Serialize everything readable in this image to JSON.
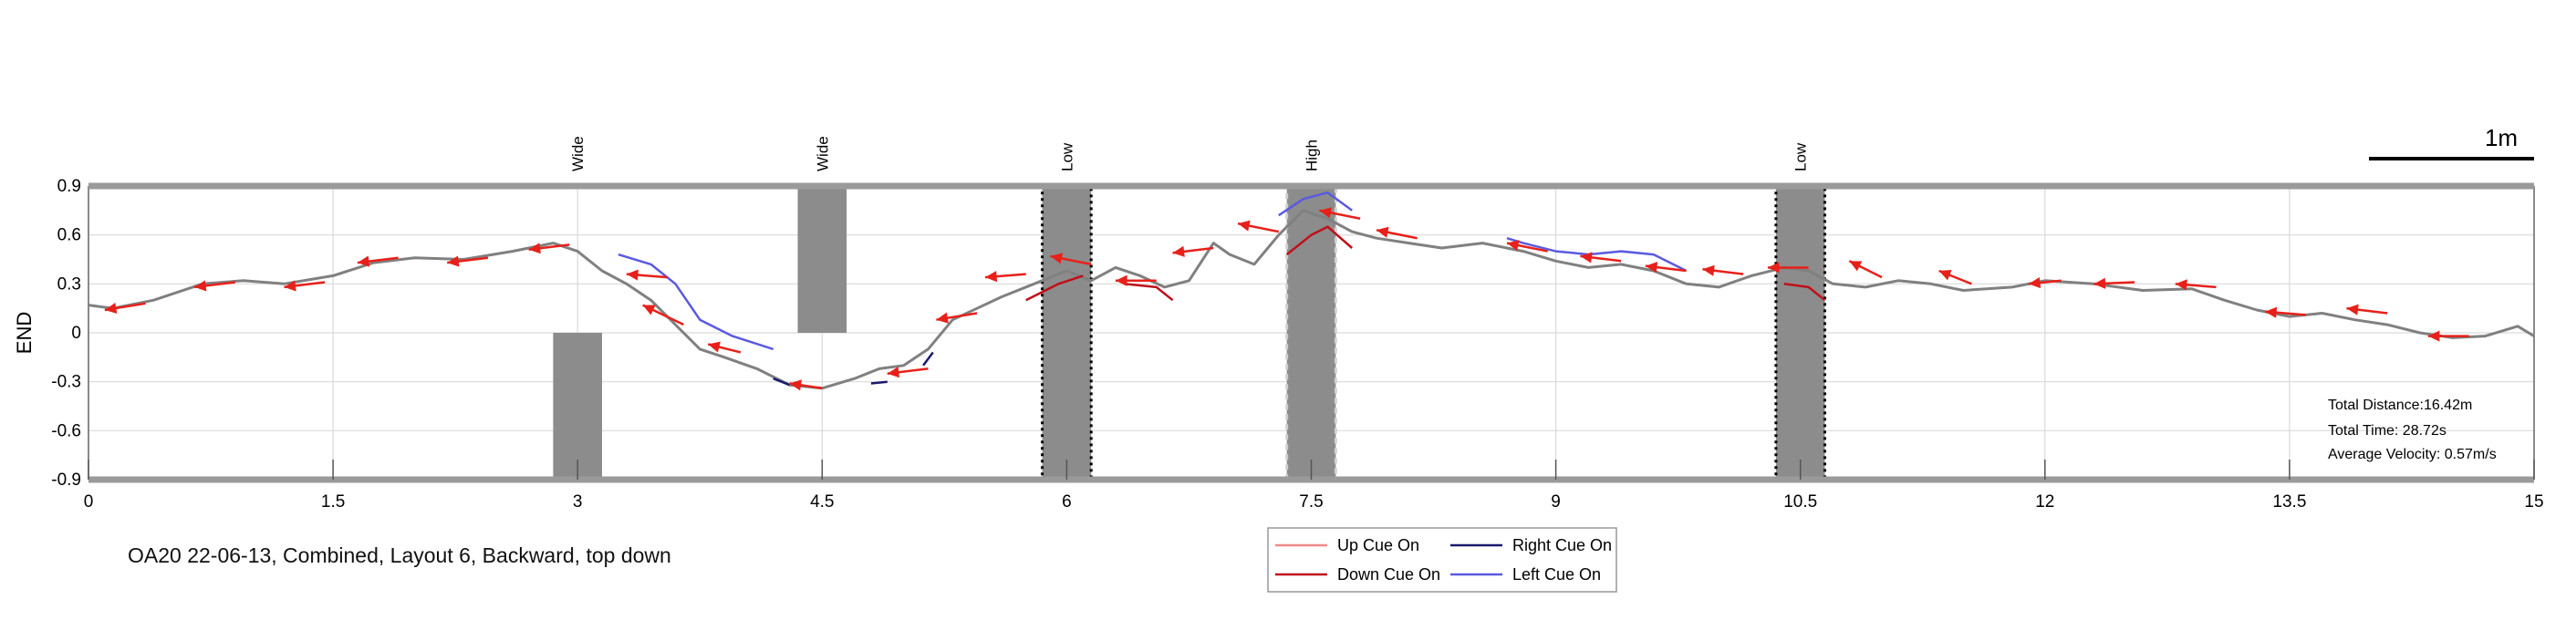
{
  "caption": "OA20 22-06-13, Combined, Layout 6, Backward, top down",
  "scale_bar_label": "1m",
  "stats": {
    "total_distance": "Total Distance:16.42m",
    "total_time": "Total Time: 28.72s",
    "average_velocity": "Average Velocity: 0.57m/s"
  },
  "legend": [
    {
      "label": "Up Cue On",
      "color": "#f28a8a"
    },
    {
      "label": "Right Cue On",
      "color": "#1a1a6e"
    },
    {
      "label": "Down Cue On",
      "color": "#c0101a"
    },
    {
      "label": "Left Cue On",
      "color": "#5a5ae0"
    }
  ],
  "colors": {
    "path": "#808080",
    "obstacle": "#8c8c8c",
    "arrow": "#e8201a",
    "rail": "#9a9a9a",
    "grid": "#d9d9d9"
  },
  "chart_data": {
    "type": "line",
    "ylabel": "END",
    "xlim": [
      0,
      15
    ],
    "ylim": [
      -0.9,
      0.9
    ],
    "xticks": [
      "0",
      "1.5",
      "3",
      "4.5",
      "6",
      "7.5",
      "9",
      "10.5",
      "12",
      "13.5",
      "15"
    ],
    "yticks": [
      "0.9",
      "0.6",
      "0.3",
      "0",
      "-0.3",
      "-0.6",
      "-0.9"
    ],
    "obstacles": [
      {
        "label": "Wide",
        "x": [
          2.85,
          3.15
        ],
        "y": [
          -0.9,
          0
        ],
        "style": "solid"
      },
      {
        "label": "Wide",
        "x": [
          4.35,
          4.65
        ],
        "y": [
          0,
          0.9
        ],
        "style": "solid"
      },
      {
        "label": "Low",
        "x": [
          5.85,
          6.15
        ],
        "y": [
          -0.9,
          0.9
        ],
        "style": "dotted"
      },
      {
        "label": "High",
        "x": [
          7.35,
          7.65
        ],
        "y": [
          -0.9,
          0.9
        ],
        "style": "dashed-light"
      },
      {
        "label": "Low",
        "x": [
          10.35,
          10.65
        ],
        "y": [
          -0.9,
          0.9
        ],
        "style": "dotted"
      }
    ],
    "series": [
      {
        "name": "",
        "x": [
          0,
          0.15,
          0.4,
          0.7,
          0.95,
          1.2,
          1.5,
          1.75,
          2.0,
          2.3,
          2.6,
          2.85,
          3.0,
          3.15,
          3.3,
          3.45,
          3.6,
          3.75,
          3.9,
          4.1,
          4.3,
          4.5,
          4.7,
          4.85,
          5.0,
          5.15,
          5.3,
          5.45,
          5.6,
          5.8,
          6.0,
          6.15,
          6.3,
          6.45,
          6.6,
          6.75,
          6.9,
          7.0,
          7.15,
          7.3,
          7.45,
          7.6,
          7.75,
          7.9,
          8.1,
          8.3,
          8.55,
          8.8,
          9.0,
          9.2,
          9.4,
          9.6,
          9.8,
          10.0,
          10.2,
          10.4,
          10.55,
          10.7,
          10.9,
          11.1,
          11.3,
          11.5,
          11.8,
          12.0,
          12.3,
          12.6,
          12.9,
          13.1,
          13.3,
          13.5,
          13.7,
          13.9,
          14.1,
          14.3,
          14.5,
          14.7,
          14.9,
          15.0
        ],
        "y": [
          0.17,
          0.15,
          0.2,
          0.3,
          0.32,
          0.3,
          0.35,
          0.43,
          0.46,
          0.45,
          0.5,
          0.55,
          0.5,
          0.38,
          0.3,
          0.2,
          0.05,
          -0.1,
          -0.15,
          -0.22,
          -0.32,
          -0.34,
          -0.28,
          -0.22,
          -0.2,
          -0.1,
          0.08,
          0.15,
          0.22,
          0.3,
          0.38,
          0.32,
          0.4,
          0.35,
          0.28,
          0.32,
          0.55,
          0.48,
          0.42,
          0.6,
          0.75,
          0.7,
          0.62,
          0.58,
          0.55,
          0.52,
          0.55,
          0.5,
          0.44,
          0.4,
          0.42,
          0.38,
          0.3,
          0.28,
          0.35,
          0.4,
          0.38,
          0.3,
          0.28,
          0.32,
          0.3,
          0.26,
          0.28,
          0.32,
          0.3,
          0.26,
          0.27,
          0.2,
          0.14,
          0.1,
          0.12,
          0.08,
          0.05,
          0.0,
          -0.03,
          -0.02,
          0.04,
          -0.02
        ]
      },
      {
        "name": "",
        "x": [
          3.25,
          3.45,
          3.6,
          3.75,
          3.95,
          4.2
        ],
        "y": [
          0.48,
          0.42,
          0.3,
          0.08,
          -0.02,
          -0.1
        ]
      },
      {
        "name": "",
        "x": [
          7.3,
          7.45,
          7.6,
          7.75
        ],
        "y": [
          0.72,
          0.82,
          0.86,
          0.75
        ]
      },
      {
        "name": "",
        "x": [
          8.7,
          8.8,
          9.0,
          9.1,
          9.2,
          9.4,
          9.6,
          9.8
        ],
        "y": [
          0.58,
          0.55,
          0.5,
          0.49,
          0.48,
          0.5,
          0.48,
          0.38
        ]
      },
      {
        "name": "",
        "x": [
          7.35,
          7.5,
          7.6,
          7.75
        ],
        "y": [
          0.48,
          0.6,
          0.65,
          0.52
        ]
      },
      {
        "name": "",
        "x": [
          5.75,
          5.95,
          6.1
        ],
        "y": [
          0.2,
          0.3,
          0.35
        ]
      },
      {
        "name": "",
        "x": [
          6.35,
          6.55,
          6.65
        ],
        "y": [
          0.3,
          0.28,
          0.2
        ]
      },
      {
        "name": "",
        "x": [
          10.4,
          10.55,
          10.65
        ],
        "y": [
          0.3,
          0.28,
          0.2
        ]
      },
      {
        "name": "",
        "x": [
          4.2,
          4.3
        ],
        "y": [
          -0.28,
          -0.32
        ]
      },
      {
        "name": "",
        "x": [
          4.8,
          4.9
        ],
        "y": [
          -0.31,
          -0.3
        ]
      },
      {
        "name": "",
        "x": [
          5.12,
          5.18
        ],
        "y": [
          -0.2,
          -0.12
        ]
      }
    ],
    "arrows": [
      {
        "x": 0.35,
        "y": 0.18,
        "dx": -0.25,
        "dy": -0.04
      },
      {
        "x": 0.9,
        "y": 0.31,
        "dx": -0.25,
        "dy": -0.03
      },
      {
        "x": 1.45,
        "y": 0.31,
        "dx": -0.25,
        "dy": -0.03
      },
      {
        "x": 1.9,
        "y": 0.46,
        "dx": -0.25,
        "dy": -0.03
      },
      {
        "x": 2.45,
        "y": 0.46,
        "dx": -0.25,
        "dy": -0.03
      },
      {
        "x": 2.95,
        "y": 0.54,
        "dx": -0.25,
        "dy": -0.03
      },
      {
        "x": 3.55,
        "y": 0.34,
        "dx": -0.25,
        "dy": 0.02
      },
      {
        "x": 3.65,
        "y": 0.05,
        "dx": -0.25,
        "dy": 0.12
      },
      {
        "x": 4.0,
        "y": -0.12,
        "dx": -0.2,
        "dy": 0.05
      },
      {
        "x": 4.5,
        "y": -0.34,
        "dx": -0.2,
        "dy": 0.03
      },
      {
        "x": 5.15,
        "y": -0.22,
        "dx": -0.25,
        "dy": -0.03
      },
      {
        "x": 5.45,
        "y": 0.12,
        "dx": -0.25,
        "dy": -0.04
      },
      {
        "x": 5.75,
        "y": 0.36,
        "dx": -0.25,
        "dy": -0.02
      },
      {
        "x": 6.15,
        "y": 0.42,
        "dx": -0.25,
        "dy": 0.05
      },
      {
        "x": 6.55,
        "y": 0.32,
        "dx": -0.25,
        "dy": 0.0
      },
      {
        "x": 6.9,
        "y": 0.52,
        "dx": -0.25,
        "dy": -0.03
      },
      {
        "x": 7.3,
        "y": 0.62,
        "dx": -0.25,
        "dy": 0.05
      },
      {
        "x": 7.8,
        "y": 0.7,
        "dx": -0.25,
        "dy": 0.05
      },
      {
        "x": 8.15,
        "y": 0.58,
        "dx": -0.25,
        "dy": 0.05
      },
      {
        "x": 8.95,
        "y": 0.5,
        "dx": -0.25,
        "dy": 0.05
      },
      {
        "x": 9.4,
        "y": 0.44,
        "dx": -0.25,
        "dy": 0.03
      },
      {
        "x": 9.8,
        "y": 0.38,
        "dx": -0.25,
        "dy": 0.03
      },
      {
        "x": 10.15,
        "y": 0.36,
        "dx": -0.25,
        "dy": 0.03
      },
      {
        "x": 10.55,
        "y": 0.4,
        "dx": -0.25,
        "dy": 0.0
      },
      {
        "x": 11.0,
        "y": 0.34,
        "dx": -0.2,
        "dy": 0.1
      },
      {
        "x": 11.55,
        "y": 0.3,
        "dx": -0.2,
        "dy": 0.08
      },
      {
        "x": 12.1,
        "y": 0.32,
        "dx": -0.2,
        "dy": -0.02
      },
      {
        "x": 12.55,
        "y": 0.31,
        "dx": -0.25,
        "dy": -0.01
      },
      {
        "x": 13.05,
        "y": 0.28,
        "dx": -0.25,
        "dy": 0.02
      },
      {
        "x": 13.6,
        "y": 0.11,
        "dx": -0.25,
        "dy": 0.02
      },
      {
        "x": 14.1,
        "y": 0.12,
        "dx": -0.25,
        "dy": 0.03
      },
      {
        "x": 14.6,
        "y": -0.02,
        "dx": -0.25,
        "dy": 0.0
      }
    ]
  }
}
